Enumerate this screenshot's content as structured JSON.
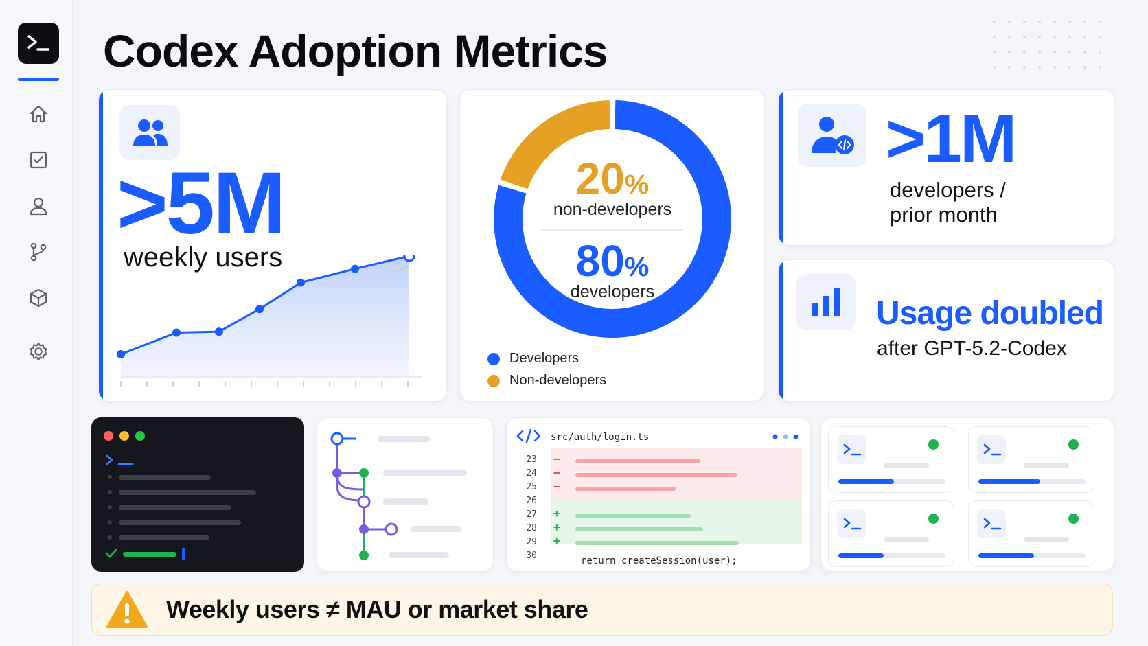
{
  "page": {
    "title": "Codex Adoption Metrics"
  },
  "sidebar": {
    "logo_icon": "terminal-prompt-icon",
    "items": [
      {
        "name": "home",
        "icon": "home-icon"
      },
      {
        "name": "tasks",
        "icon": "checkbox-icon"
      },
      {
        "name": "profile",
        "icon": "user-icon"
      },
      {
        "name": "branches",
        "icon": "git-branch-icon"
      },
      {
        "name": "packages",
        "icon": "cube-icon"
      },
      {
        "name": "settings",
        "icon": "gear-icon"
      }
    ]
  },
  "weekly_users_card": {
    "icon": "users-icon",
    "value": ">5M",
    "label": "weekly users",
    "trend": {
      "points": [
        0.0,
        0.22,
        0.23,
        0.46,
        0.73,
        0.87,
        1.0
      ]
    }
  },
  "developer_split_card": {
    "non_dev_percent": "20",
    "non_dev_label": "non-developers",
    "dev_percent": "80",
    "dev_label": "developers",
    "percent_sign": "%",
    "legend": [
      {
        "label": "Developers",
        "color": "#1a5cff"
      },
      {
        "label": "Non-developers",
        "color": "#e6a125"
      }
    ]
  },
  "monthly_devs_card": {
    "icon": "developer-user-icon",
    "value": ">1M",
    "label_line1": "developers /",
    "label_line2": "prior month"
  },
  "usage_card": {
    "icon": "bar-chart-icon",
    "headline": "Usage doubled",
    "subline": "after GPT-5.2-Codex"
  },
  "code_diff_card": {
    "icon": "code-icon",
    "path": "src/auth/login.ts",
    "line_numbers": [
      "23",
      "24",
      "25",
      "26",
      "27",
      "28",
      "29",
      "30"
    ],
    "removed_mark": "−",
    "added_mark": "+",
    "code_line": "return createSession(user);"
  },
  "agent_cards": {
    "progress": [
      0.52,
      0.58,
      0.42,
      0.52
    ]
  },
  "warning_banner": {
    "icon": "warning-icon",
    "text": "Weekly users ≠ MAU or market share"
  },
  "colors": {
    "accent": "#1a5cff",
    "non_dev": "#e6a125",
    "success": "#1fb14f",
    "warning": "#f0a81c"
  }
}
